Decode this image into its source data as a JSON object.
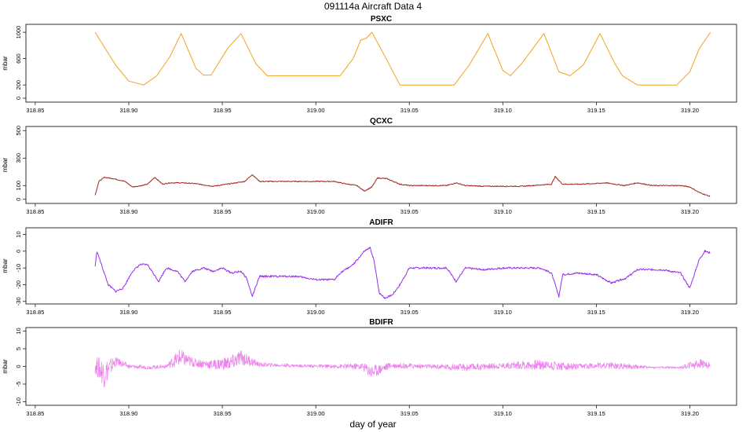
{
  "title": "091114a    Aircraft Data 4",
  "xlabel": "day of year",
  "chart_data": [
    {
      "type": "line",
      "title": "PSXC",
      "ylabel": "mbar",
      "color": "#f2a21b",
      "xlim": [
        318.845,
        319.225
      ],
      "ylim": [
        -60,
        1120
      ],
      "xticks": [
        "318.85",
        "318.90",
        "318.95",
        "319.00",
        "319.05",
        "319.10",
        "319.15",
        "319.20"
      ],
      "yticks": [
        "0",
        "200",
        "600",
        "1000"
      ],
      "ytick_values": [
        0,
        200,
        600,
        1000
      ],
      "x": [
        318.882,
        318.893,
        318.9,
        318.908,
        318.915,
        318.922,
        318.928,
        318.936,
        318.94,
        318.944,
        318.953,
        318.96,
        318.968,
        318.974,
        318.99,
        319.0,
        319.013,
        319.02,
        319.024,
        319.027,
        319.03,
        319.038,
        319.045,
        319.058,
        319.074,
        319.082,
        319.092,
        319.1,
        319.104,
        319.11,
        319.122,
        319.13,
        319.136,
        319.143,
        319.152,
        319.16,
        319.164,
        319.172,
        319.18,
        319.193,
        319.2,
        319.205,
        319.211
      ],
      "y": [
        1000,
        500,
        260,
        200,
        340,
        630,
        980,
        450,
        350,
        350,
        760,
        980,
        520,
        340,
        340,
        340,
        340,
        600,
        880,
        910,
        1000,
        580,
        200,
        200,
        200,
        500,
        980,
        420,
        340,
        520,
        980,
        400,
        340,
        500,
        980,
        520,
        340,
        200,
        200,
        200,
        400,
        750,
        1000
      ]
    },
    {
      "type": "line",
      "title": "QCXC",
      "ylabel": "mbar",
      "color": "#a3261c",
      "xlim": [
        318.845,
        319.225
      ],
      "ylim": [
        -30,
        530
      ],
      "xticks": [
        "318.85",
        "318.90",
        "318.95",
        "319.00",
        "319.05",
        "319.10",
        "319.15",
        "319.20"
      ],
      "yticks": [
        "0",
        "100",
        "300",
        "500"
      ],
      "ytick_values": [
        0,
        100,
        300,
        500
      ],
      "x": [
        318.882,
        318.884,
        318.887,
        318.892,
        318.898,
        318.902,
        318.907,
        318.91,
        318.914,
        318.918,
        318.922,
        318.928,
        318.935,
        318.945,
        318.955,
        318.962,
        318.966,
        318.97,
        318.98,
        318.99,
        319.0,
        319.01,
        319.015,
        319.022,
        319.026,
        319.03,
        319.033,
        319.038,
        319.045,
        319.05,
        319.06,
        319.07,
        319.075,
        319.08,
        319.09,
        319.11,
        319.126,
        319.128,
        319.132,
        319.14,
        319.15,
        319.155,
        319.165,
        319.172,
        319.18,
        319.195,
        319.2,
        319.205,
        319.211
      ],
      "y": [
        30,
        130,
        160,
        150,
        130,
        90,
        100,
        110,
        160,
        110,
        120,
        120,
        115,
        95,
        115,
        130,
        180,
        130,
        130,
        130,
        130,
        130,
        115,
        100,
        60,
        90,
        155,
        150,
        110,
        100,
        100,
        100,
        120,
        100,
        95,
        95,
        110,
        165,
        110,
        110,
        115,
        120,
        100,
        120,
        100,
        100,
        90,
        50,
        20
      ]
    },
    {
      "type": "line",
      "title": "ADIFR",
      "ylabel": "mbar",
      "color": "#9a2ef0",
      "xlim": [
        318.845,
        319.225
      ],
      "ylim": [
        -31.5,
        14
      ],
      "xticks": [
        "318.85",
        "318.90",
        "318.95",
        "319.00",
        "319.05",
        "319.10",
        "319.15",
        "319.20"
      ],
      "yticks": [
        "-30",
        "-20",
        "-10",
        "0",
        "10"
      ],
      "ytick_values": [
        -30,
        -20,
        -10,
        0,
        10
      ],
      "x": [
        318.882,
        318.883,
        318.886,
        318.889,
        318.893,
        318.897,
        318.902,
        318.906,
        318.91,
        318.916,
        318.92,
        318.926,
        318.93,
        318.934,
        318.94,
        318.945,
        318.95,
        318.955,
        318.96,
        318.963,
        318.966,
        318.97,
        318.98,
        318.99,
        319.0,
        319.01,
        319.013,
        319.02,
        319.026,
        319.029,
        319.031,
        319.034,
        319.037,
        319.041,
        319.045,
        319.05,
        319.07,
        319.075,
        319.08,
        319.09,
        319.1,
        319.12,
        319.126,
        319.13,
        319.132,
        319.14,
        319.15,
        319.158,
        319.166,
        319.172,
        319.185,
        319.195,
        319.2,
        319.205,
        319.208,
        319.211
      ],
      "y": [
        -9,
        0,
        -10,
        -20,
        -24,
        -22,
        -12,
        -8,
        -8,
        -18,
        -10,
        -12,
        -18,
        -12,
        -10,
        -12,
        -10,
        -13,
        -12,
        -16,
        -27,
        -15,
        -15,
        -15,
        -17,
        -17,
        -13,
        -8,
        0,
        2,
        -5,
        -25,
        -28,
        -26,
        -20,
        -10,
        -10,
        -18,
        -10,
        -11,
        -10,
        -10,
        -13,
        -27,
        -14,
        -13,
        -14,
        -19,
        -16,
        -11,
        -11,
        -13,
        -22,
        -5,
        0,
        -1
      ]
    },
    {
      "type": "line",
      "title": "BDIFR",
      "ylabel": "mbar",
      "color": "#ee82ee",
      "xlim": [
        318.845,
        319.225
      ],
      "ylim": [
        -11,
        11
      ],
      "xticks": [
        "318.85",
        "318.90",
        "318.95",
        "319.00",
        "319.05",
        "319.10",
        "319.15",
        "319.20"
      ],
      "yticks": [
        "-10",
        "-5",
        "0",
        "5",
        "10"
      ],
      "ytick_values": [
        -10,
        -5,
        0,
        5,
        10
      ],
      "x": [
        318.882,
        318.887,
        318.893,
        318.9,
        318.91,
        318.92,
        318.927,
        318.935,
        318.945,
        318.955,
        318.96,
        318.97,
        318.99,
        319.01,
        319.025,
        319.03,
        319.04,
        319.06,
        319.08,
        319.1,
        319.12,
        319.14,
        319.15,
        319.16,
        319.18,
        319.195,
        319.2,
        319.205,
        319.211
      ],
      "y": [
        0.5,
        -2,
        1.5,
        0,
        -0.3,
        0,
        2.5,
        1,
        0.5,
        1,
        2.5,
        0.5,
        0.2,
        0,
        0,
        -1.5,
        0.3,
        0,
        -0.3,
        0.2,
        0.5,
        -0.2,
        0.3,
        0.2,
        -0.3,
        -0.3,
        0.3,
        0.8,
        0.2
      ],
      "amplitude": [
        2.5,
        4,
        1.2,
        0.6,
        0.5,
        0.5,
        2.5,
        1.2,
        1.3,
        2.2,
        2.2,
        0.6,
        0.4,
        0.5,
        1.0,
        2.0,
        0.8,
        0.6,
        1.0,
        0.8,
        1.5,
        0.9,
        0.7,
        1.0,
        0.3,
        0.3,
        1.0,
        1.5,
        0.8
      ]
    }
  ]
}
